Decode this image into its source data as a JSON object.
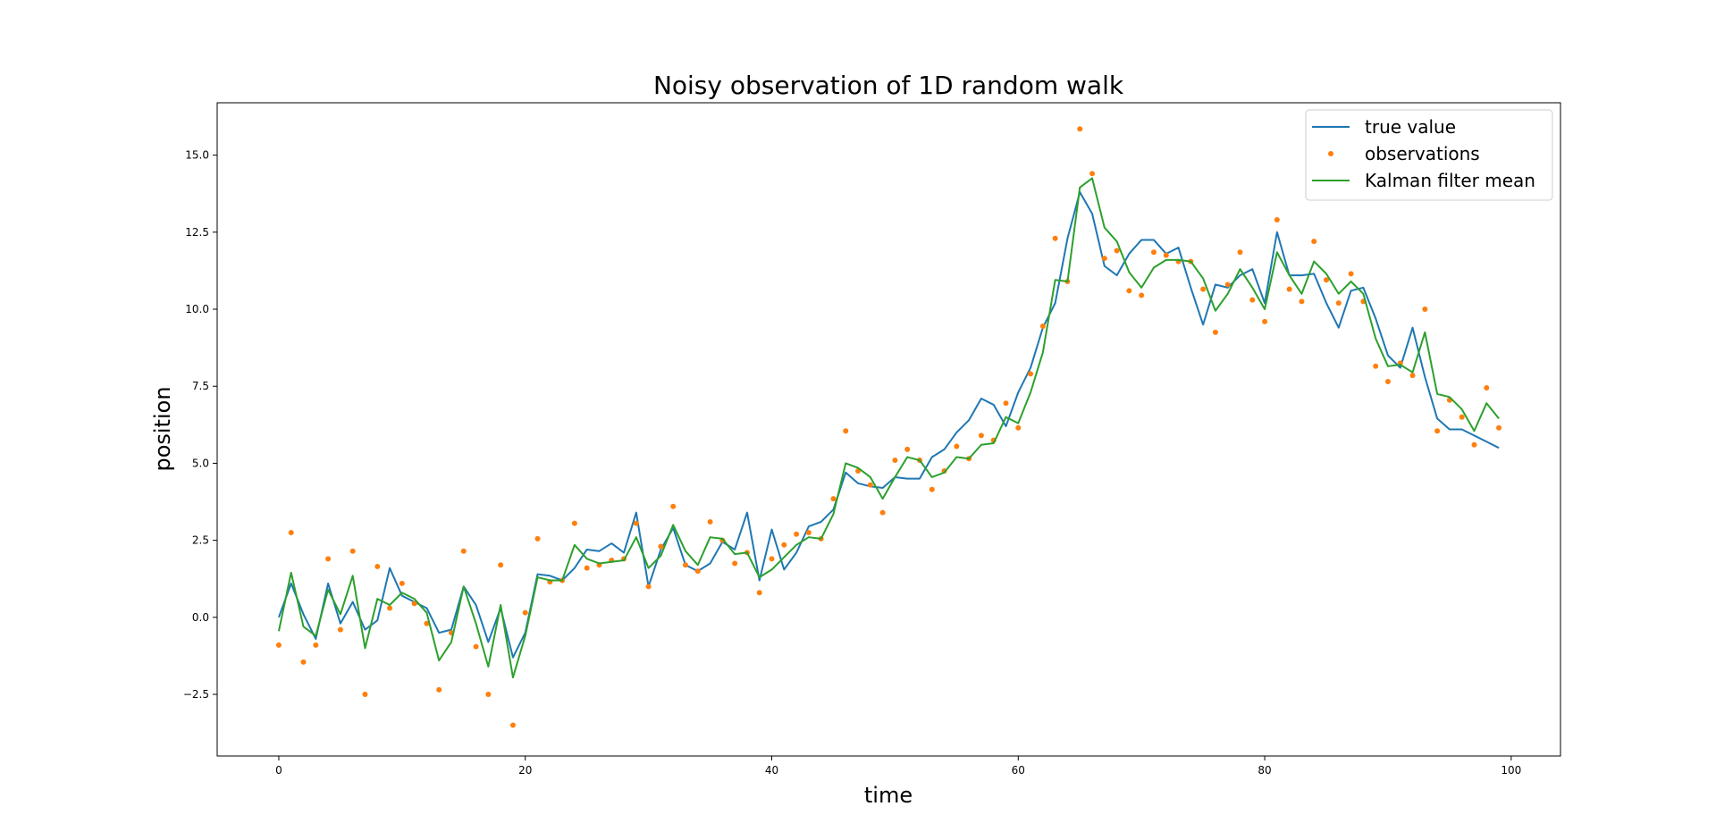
{
  "chart_data": {
    "type": "line",
    "title": "Noisy observation of 1D random walk",
    "xlabel": "time",
    "ylabel": "position",
    "xlim": [
      -5,
      104
    ],
    "ylim": [
      -4.5,
      16.7
    ],
    "xticks": [
      0,
      20,
      40,
      60,
      80,
      100
    ],
    "yticks": [
      -2.5,
      0.0,
      2.5,
      5.0,
      7.5,
      10.0,
      12.5,
      15.0
    ],
    "xtick_labels": [
      "0",
      "20",
      "40",
      "60",
      "80",
      "100"
    ],
    "ytick_labels": [
      "−2.5",
      "0.0",
      "2.5",
      "5.0",
      "7.5",
      "10.0",
      "12.5",
      "15.0"
    ],
    "grid": false,
    "legend_position": "top-right",
    "series": [
      {
        "name": "true value",
        "kind": "line",
        "color": "#1f77b4",
        "y": [
          0.0,
          1.1,
          0.1,
          -0.7,
          1.1,
          -0.2,
          0.5,
          -0.4,
          -0.1,
          1.6,
          0.7,
          0.5,
          0.3,
          -0.5,
          -0.4,
          1.0,
          0.4,
          -0.8,
          0.3,
          -1.3,
          -0.5,
          1.4,
          1.35,
          1.2,
          1.6,
          2.2,
          2.15,
          2.4,
          2.1,
          3.4,
          1.0,
          2.2,
          2.9,
          1.7,
          1.5,
          1.75,
          2.45,
          2.2,
          3.4,
          1.2,
          2.85,
          1.55,
          2.1,
          2.95,
          3.1,
          3.5,
          4.7,
          4.35,
          4.25,
          4.2,
          4.55,
          4.5,
          4.5,
          5.2,
          5.45,
          6.0,
          6.4,
          7.1,
          6.9,
          6.2,
          7.3,
          8.1,
          9.4,
          10.2,
          12.3,
          13.8,
          13.1,
          11.4,
          11.1,
          11.8,
          12.25,
          12.25,
          11.8,
          12.0,
          10.7,
          9.5,
          10.8,
          10.7,
          11.1,
          11.3,
          10.2,
          12.5,
          11.1,
          11.1,
          11.15,
          10.2,
          9.4,
          10.6,
          10.7,
          9.7,
          8.5,
          8.1,
          9.4,
          7.8,
          6.45,
          6.1,
          6.1,
          5.9,
          5.7,
          5.5
        ]
      },
      {
        "name": "observations",
        "kind": "scatter",
        "color": "#ff7f0e",
        "y": [
          -0.9,
          2.75,
          -1.45,
          -0.9,
          1.9,
          -0.4,
          2.15,
          -2.5,
          1.65,
          0.3,
          1.1,
          0.45,
          -0.2,
          -2.35,
          -0.5,
          2.15,
          -0.95,
          -2.5,
          1.7,
          -3.5,
          0.15,
          2.55,
          1.15,
          1.2,
          3.05,
          1.6,
          1.7,
          1.85,
          1.9,
          3.05,
          1.0,
          2.3,
          3.6,
          1.7,
          1.5,
          3.1,
          2.5,
          1.75,
          2.1,
          0.8,
          1.9,
          2.35,
          2.7,
          2.75,
          2.55,
          3.85,
          6.05,
          4.75,
          4.3,
          3.4,
          5.1,
          5.45,
          5.1,
          4.15,
          4.75,
          5.55,
          5.15,
          5.9,
          5.75,
          6.95,
          6.15,
          7.9,
          9.45,
          12.3,
          10.9,
          15.85,
          14.4,
          11.65,
          11.9,
          10.6,
          10.45,
          11.85,
          11.75,
          11.55,
          11.55,
          10.65,
          9.25,
          10.8,
          11.85,
          10.3,
          9.6,
          12.9,
          10.65,
          10.25,
          12.2,
          10.95,
          10.2,
          11.15,
          10.25,
          8.15,
          7.65,
          8.25,
          7.85,
          10.0,
          6.05,
          7.05,
          6.5,
          5.6,
          7.45,
          6.15
        ]
      },
      {
        "name": "Kalman filter mean",
        "kind": "line",
        "color": "#2ca02c",
        "y": [
          -0.45,
          1.45,
          -0.3,
          -0.6,
          0.9,
          0.1,
          1.35,
          -1.0,
          0.6,
          0.4,
          0.8,
          0.6,
          0.15,
          -1.4,
          -0.8,
          1.0,
          -0.2,
          -1.6,
          0.4,
          -1.95,
          -0.6,
          1.3,
          1.2,
          1.2,
          2.35,
          1.9,
          1.75,
          1.8,
          1.85,
          2.6,
          1.6,
          2.0,
          3.0,
          2.15,
          1.7,
          2.6,
          2.55,
          2.05,
          2.1,
          1.3,
          1.55,
          1.95,
          2.35,
          2.6,
          2.55,
          3.35,
          5.0,
          4.85,
          4.55,
          3.85,
          4.55,
          5.2,
          5.1,
          4.55,
          4.7,
          5.2,
          5.15,
          5.6,
          5.65,
          6.5,
          6.3,
          7.3,
          8.6,
          10.95,
          10.9,
          13.95,
          14.25,
          12.65,
          12.2,
          11.2,
          10.7,
          11.35,
          11.6,
          11.6,
          11.55,
          11.0,
          9.95,
          10.5,
          11.3,
          10.7,
          10.0,
          11.85,
          11.1,
          10.5,
          11.55,
          11.15,
          10.5,
          10.9,
          10.5,
          9.05,
          8.15,
          8.2,
          7.95,
          9.25,
          7.25,
          7.15,
          6.75,
          6.05,
          6.95,
          6.45
        ]
      }
    ]
  }
}
